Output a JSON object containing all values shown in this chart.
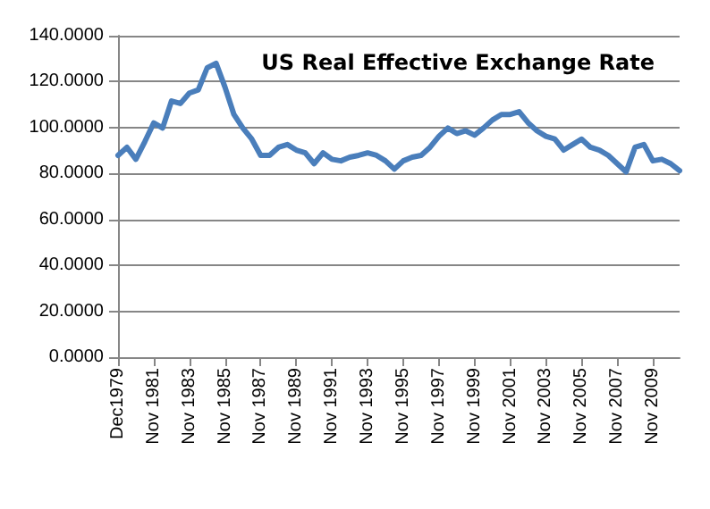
{
  "chart_data": {
    "type": "line",
    "title": "US Real Effective Exchange Rate",
    "categories": [
      "Dec1979",
      null,
      null,
      null,
      "Nov 1981",
      null,
      null,
      null,
      "Nov 1983",
      null,
      null,
      null,
      "Nov 1985",
      null,
      null,
      null,
      "Nov 1987",
      null,
      null,
      null,
      "Nov 1989",
      null,
      null,
      null,
      "Nov 1991",
      null,
      null,
      null,
      "Nov 1993",
      null,
      null,
      null,
      "Nov 1995",
      null,
      null,
      null,
      "Nov 1997",
      null,
      null,
      null,
      "Nov 1999",
      null,
      null,
      null,
      "Nov 2001",
      null,
      null,
      null,
      "Nov 2003",
      null,
      null,
      null,
      "Nov 2005",
      null,
      null,
      null,
      "Nov 2007",
      null,
      null,
      null,
      "Nov 2009",
      null,
      null,
      null
    ],
    "series": [
      {
        "color": "#4a7ebb",
        "values": [
          87.9,
          91.4,
          86.2,
          93.8,
          102,
          99.8,
          111.6,
          110.5,
          115,
          116.4,
          126,
          128,
          117.6,
          105.7,
          99.8,
          95,
          87.9,
          87.9,
          91.4,
          92.6,
          90.2,
          89,
          84.3,
          89,
          86.2,
          85.5,
          87.1,
          87.9,
          89,
          87.9,
          85.5,
          81.9,
          85.5,
          87.1,
          87.9,
          91.4,
          96.2,
          99.8,
          97.4,
          98.6,
          96.7,
          99.8,
          103.3,
          105.7,
          105.7,
          106.9,
          102.1,
          98.6,
          96.2,
          95,
          90.2,
          92.6,
          95,
          91.4,
          90.2,
          87.9,
          84.3,
          80.7,
          91.4,
          92.6,
          85.5,
          86.2,
          84.3,
          81.2
        ]
      }
    ],
    "ylim": [
      0,
      140
    ],
    "yticks": [
      {
        "value": 0,
        "label": "0.0000"
      },
      {
        "value": 20,
        "label": "20.0000"
      },
      {
        "value": 40,
        "label": "40.0000"
      },
      {
        "value": 60,
        "label": "60.0000"
      },
      {
        "value": 80,
        "label": "80.0000"
      },
      {
        "value": 100,
        "label": "100.0000"
      },
      {
        "value": 120,
        "label": "120.0000"
      },
      {
        "value": 140,
        "label": "140.0000"
      }
    ],
    "grid": "y",
    "marker": "none",
    "line_style": "solid"
  }
}
